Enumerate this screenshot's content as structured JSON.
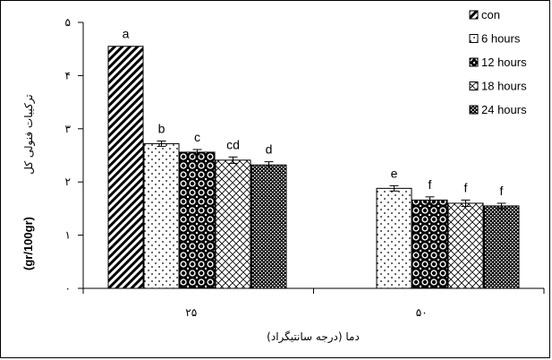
{
  "chart_data": {
    "type": "bar",
    "categories": [
      "۲۵",
      "۵۰"
    ],
    "series": [
      {
        "name": "con",
        "values": [
          4.55,
          null
        ],
        "errors": [
          0,
          null
        ],
        "labels": [
          "a",
          ""
        ],
        "pattern": "diag"
      },
      {
        "name": "6 hours",
        "values": [
          2.72,
          1.88
        ],
        "errors": [
          0.05,
          0.05
        ],
        "labels": [
          "b",
          "e"
        ],
        "pattern": "dots"
      },
      {
        "name": "12 hours",
        "values": [
          2.56,
          1.66
        ],
        "errors": [
          0.05,
          0.06
        ],
        "labels": [
          "c",
          "f"
        ],
        "pattern": "balls"
      },
      {
        "name": "18 hours",
        "values": [
          2.41,
          1.6
        ],
        "errors": [
          0.06,
          0.06
        ],
        "labels": [
          "cd",
          "f"
        ],
        "pattern": "cross"
      },
      {
        "name": "24 hours",
        "values": [
          2.32,
          1.55
        ],
        "errors": [
          0.06,
          0.05
        ],
        "labels": [
          "d",
          "f"
        ],
        "pattern": "check"
      }
    ],
    "yticks": [
      "۰",
      "۱",
      "۲",
      "۳",
      "۴",
      "۵"
    ],
    "ylim": [
      0,
      5
    ],
    "ylabel_latin": "(gr/100gr)",
    "ylabel_persian": "ترکیبات فنولی کل",
    "xlabel": "دما (درجه سانتیگراد)",
    "legend_position": "top-right",
    "grid": false
  }
}
